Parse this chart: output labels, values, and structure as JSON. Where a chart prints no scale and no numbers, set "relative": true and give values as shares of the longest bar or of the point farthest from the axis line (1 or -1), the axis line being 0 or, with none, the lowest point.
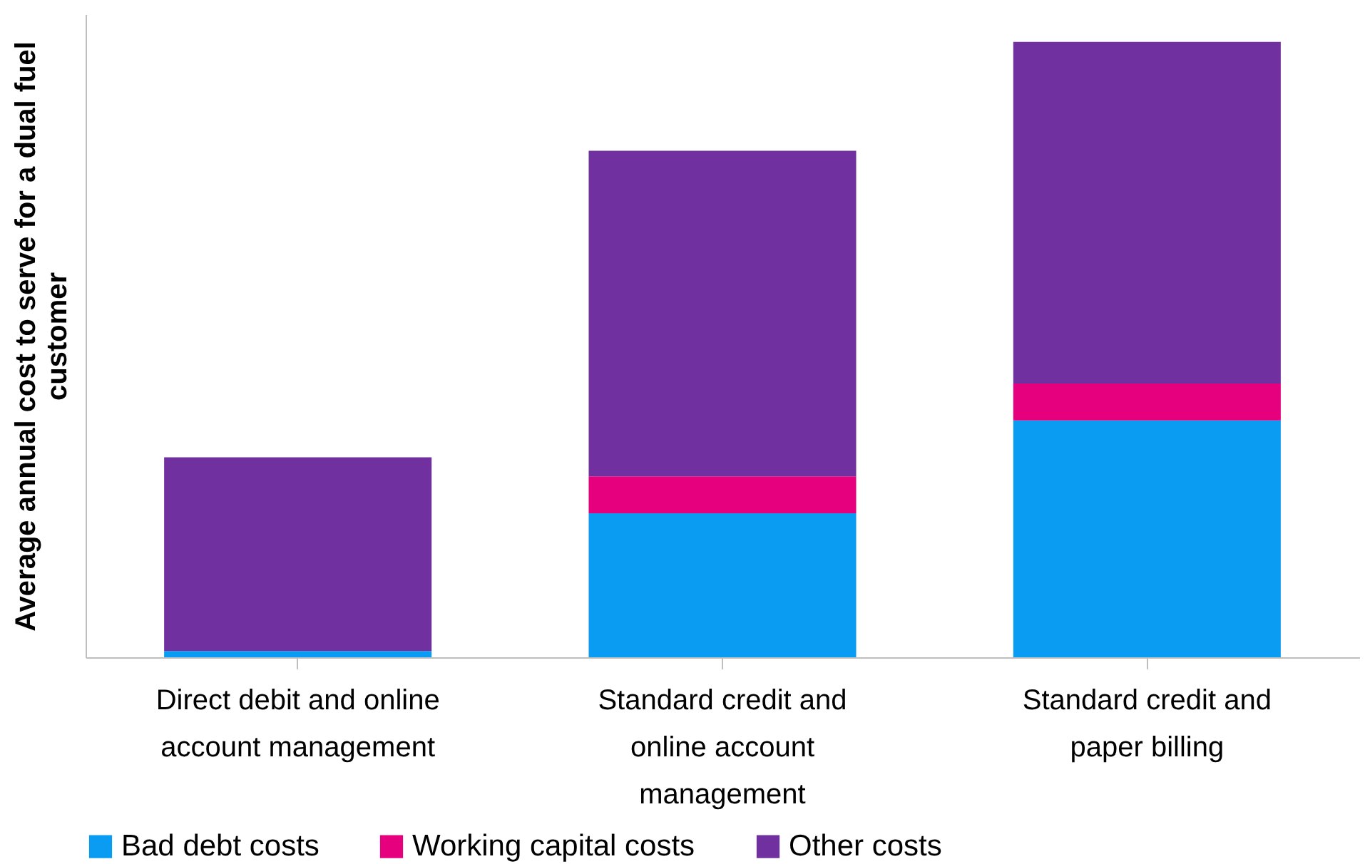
{
  "chart_data": {
    "type": "bar",
    "stacked": true,
    "relative": true,
    "ylabel": "Average annual cost to serve for a dual fuel customer",
    "categories": [
      "Direct debit and online account management",
      "Standard credit and online account management",
      "Standard credit and paper billing"
    ],
    "series": [
      {
        "name": "Bad debt costs",
        "color": "#0a9cf2",
        "values": [
          0.01,
          0.234,
          0.385
        ]
      },
      {
        "name": "Working capital costs",
        "color": "#e6007e",
        "values": [
          0,
          0.06,
          0.06
        ]
      },
      {
        "name": "Other costs",
        "color": "#7030a0",
        "values": [
          0.315,
          0.529,
          0.555
        ]
      }
    ],
    "legend": "bottom",
    "grid": false
  }
}
